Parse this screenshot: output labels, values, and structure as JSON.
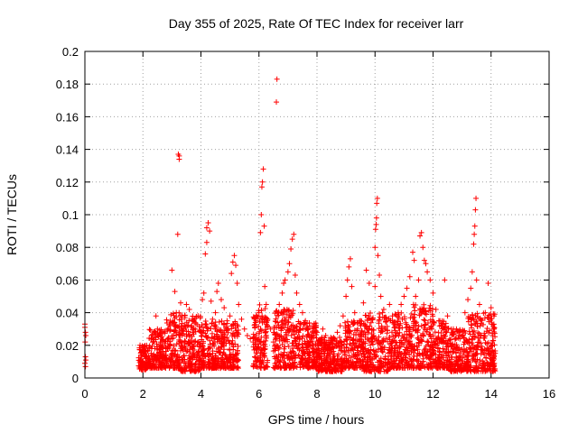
{
  "chart_data": {
    "type": "scatter",
    "title": "Day 355 of 2025, Rate Of TEC Index for receiver larr",
    "xlabel": "GPS time / hours",
    "ylabel": "ROTI / TECUs",
    "xlim": [
      0,
      16
    ],
    "ylim": [
      0,
      0.2
    ],
    "x_ticks": [
      0,
      2,
      4,
      6,
      8,
      10,
      12,
      14,
      16
    ],
    "y_ticks": [
      0,
      0.02,
      0.04,
      0.06,
      0.08,
      0.1,
      0.12,
      0.14,
      0.16,
      0.18,
      0.2
    ],
    "grid": true,
    "marker": "plus",
    "color": "#ff0000",
    "points": [
      [
        0.0,
        0.033
      ],
      [
        0.0,
        0.031
      ],
      [
        0.02,
        0.028
      ],
      [
        0.03,
        0.026
      ],
      [
        0.01,
        0.022
      ],
      [
        0.02,
        0.013
      ],
      [
        0.03,
        0.011
      ],
      [
        0.0,
        0.009
      ],
      [
        0.02,
        0.007
      ],
      [
        1.9,
        0.02
      ],
      [
        2.0,
        0.015
      ],
      [
        2.1,
        0.012
      ],
      [
        2.2,
        0.01
      ],
      [
        2.3,
        0.018
      ],
      [
        2.4,
        0.025
      ],
      [
        2.45,
        0.038
      ],
      [
        2.5,
        0.03
      ],
      [
        2.6,
        0.022
      ],
      [
        2.7,
        0.028
      ],
      [
        2.8,
        0.018
      ],
      [
        2.9,
        0.012
      ],
      [
        3.0,
        0.024
      ],
      [
        3.0,
        0.066
      ],
      [
        3.05,
        0.034
      ],
      [
        3.1,
        0.053
      ],
      [
        3.15,
        0.04
      ],
      [
        3.2,
        0.088
      ],
      [
        3.22,
        0.137
      ],
      [
        3.25,
        0.136
      ],
      [
        3.25,
        0.134
      ],
      [
        3.3,
        0.046
      ],
      [
        3.35,
        0.038
      ],
      [
        3.4,
        0.03
      ],
      [
        3.5,
        0.045
      ],
      [
        3.6,
        0.042
      ],
      [
        3.7,
        0.036
      ],
      [
        3.8,
        0.03
      ],
      [
        3.9,
        0.038
      ],
      [
        4.0,
        0.028
      ],
      [
        4.05,
        0.048
      ],
      [
        4.1,
        0.052
      ],
      [
        4.15,
        0.076
      ],
      [
        4.2,
        0.083
      ],
      [
        4.2,
        0.092
      ],
      [
        4.25,
        0.095
      ],
      [
        4.3,
        0.09
      ],
      [
        4.35,
        0.047
      ],
      [
        4.4,
        0.036
      ],
      [
        4.5,
        0.04
      ],
      [
        4.55,
        0.053
      ],
      [
        4.6,
        0.058
      ],
      [
        4.7,
        0.048
      ],
      [
        4.8,
        0.043
      ],
      [
        4.9,
        0.035
      ],
      [
        5.0,
        0.038
      ],
      [
        5.05,
        0.064
      ],
      [
        5.1,
        0.071
      ],
      [
        5.15,
        0.075
      ],
      [
        5.2,
        0.069
      ],
      [
        5.25,
        0.058
      ],
      [
        5.3,
        0.045
      ],
      [
        5.4,
        0.036
      ],
      [
        5.5,
        0.03
      ],
      [
        5.6,
        0.026
      ],
      [
        5.7,
        0.024
      ],
      [
        5.8,
        0.022
      ],
      [
        5.9,
        0.035
      ],
      [
        6.0,
        0.04
      ],
      [
        6.05,
        0.089
      ],
      [
        6.08,
        0.1
      ],
      [
        6.1,
        0.117
      ],
      [
        6.12,
        0.12
      ],
      [
        6.15,
        0.128
      ],
      [
        6.18,
        0.093
      ],
      [
        6.2,
        0.056
      ],
      [
        6.25,
        0.045
      ],
      [
        6.3,
        0.036
      ],
      [
        6.4,
        0.03
      ],
      [
        6.5,
        0.022
      ],
      [
        6.6,
        0.169
      ],
      [
        6.62,
        0.183
      ],
      [
        6.7,
        0.045
      ],
      [
        6.8,
        0.052
      ],
      [
        6.85,
        0.058
      ],
      [
        6.9,
        0.06
      ],
      [
        7.0,
        0.065
      ],
      [
        7.05,
        0.07
      ],
      [
        7.1,
        0.079
      ],
      [
        7.15,
        0.085
      ],
      [
        7.2,
        0.088
      ],
      [
        7.25,
        0.063
      ],
      [
        7.3,
        0.052
      ],
      [
        7.4,
        0.045
      ],
      [
        7.5,
        0.04
      ],
      [
        7.6,
        0.035
      ],
      [
        7.7,
        0.03
      ],
      [
        7.8,
        0.025
      ],
      [
        7.9,
        0.033
      ],
      [
        8.0,
        0.028
      ],
      [
        8.1,
        0.022
      ],
      [
        8.2,
        0.03
      ],
      [
        8.3,
        0.026
      ],
      [
        8.4,
        0.02
      ],
      [
        8.5,
        0.018
      ],
      [
        8.6,
        0.024
      ],
      [
        8.7,
        0.028
      ],
      [
        8.8,
        0.032
      ],
      [
        8.9,
        0.038
      ],
      [
        9.0,
        0.05
      ],
      [
        9.05,
        0.06
      ],
      [
        9.1,
        0.068
      ],
      [
        9.15,
        0.073
      ],
      [
        9.2,
        0.056
      ],
      [
        9.3,
        0.04
      ],
      [
        9.4,
        0.03
      ],
      [
        9.5,
        0.035
      ],
      [
        9.6,
        0.046
      ],
      [
        9.7,
        0.066
      ],
      [
        9.8,
        0.058
      ],
      [
        9.9,
        0.036
      ],
      [
        10.0,
        0.056
      ],
      [
        10.0,
        0.08
      ],
      [
        10.02,
        0.091
      ],
      [
        10.04,
        0.094
      ],
      [
        10.05,
        0.098
      ],
      [
        10.06,
        0.107
      ],
      [
        10.08,
        0.11
      ],
      [
        10.1,
        0.075
      ],
      [
        10.15,
        0.063
      ],
      [
        10.2,
        0.05
      ],
      [
        10.3,
        0.042
      ],
      [
        10.4,
        0.036
      ],
      [
        10.5,
        0.045
      ],
      [
        10.6,
        0.038
      ],
      [
        10.7,
        0.032
      ],
      [
        10.8,
        0.04
      ],
      [
        10.9,
        0.045
      ],
      [
        11.0,
        0.05
      ],
      [
        11.1,
        0.055
      ],
      [
        11.2,
        0.062
      ],
      [
        11.3,
        0.077
      ],
      [
        11.35,
        0.072
      ],
      [
        11.4,
        0.05
      ],
      [
        11.5,
        0.06
      ],
      [
        11.55,
        0.087
      ],
      [
        11.6,
        0.089
      ],
      [
        11.65,
        0.08
      ],
      [
        11.7,
        0.072
      ],
      [
        11.75,
        0.07
      ],
      [
        11.8,
        0.065
      ],
      [
        11.9,
        0.06
      ],
      [
        12.0,
        0.052
      ],
      [
        12.1,
        0.042
      ],
      [
        12.2,
        0.035
      ],
      [
        12.4,
        0.06
      ],
      [
        12.5,
        0.038
      ],
      [
        12.7,
        0.03
      ],
      [
        12.9,
        0.028
      ],
      [
        13.1,
        0.04
      ],
      [
        13.2,
        0.048
      ],
      [
        13.3,
        0.055
      ],
      [
        13.35,
        0.065
      ],
      [
        13.4,
        0.082
      ],
      [
        13.42,
        0.088
      ],
      [
        13.44,
        0.093
      ],
      [
        13.46,
        0.103
      ],
      [
        13.48,
        0.11
      ],
      [
        13.5,
        0.06
      ],
      [
        13.6,
        0.045
      ],
      [
        13.8,
        0.04
      ],
      [
        13.9,
        0.058
      ],
      [
        14.0,
        0.043
      ],
      [
        14.1,
        0.038
      ],
      [
        14.1,
        0.03
      ],
      [
        14.05,
        0.02
      ],
      [
        14.0,
        0.015
      ]
    ],
    "dense_band": [
      {
        "x0": 1.85,
        "x1": 2.2,
        "ymin": 0.005,
        "ymax": 0.02
      },
      {
        "x0": 2.2,
        "x1": 2.8,
        "ymin": 0.006,
        "ymax": 0.03
      },
      {
        "x0": 2.8,
        "x1": 3.3,
        "ymin": 0.006,
        "ymax": 0.04
      },
      {
        "x0": 3.3,
        "x1": 4.0,
        "ymin": 0.004,
        "ymax": 0.04
      },
      {
        "x0": 4.0,
        "x1": 4.6,
        "ymin": 0.006,
        "ymax": 0.035
      },
      {
        "x0": 4.6,
        "x1": 5.3,
        "ymin": 0.006,
        "ymax": 0.035
      },
      {
        "x0": 5.8,
        "x1": 6.3,
        "ymin": 0.006,
        "ymax": 0.045
      },
      {
        "x0": 6.5,
        "x1": 7.2,
        "ymin": 0.006,
        "ymax": 0.042
      },
      {
        "x0": 7.2,
        "x1": 8.0,
        "ymin": 0.006,
        "ymax": 0.035
      },
      {
        "x0": 8.0,
        "x1": 8.9,
        "ymin": 0.004,
        "ymax": 0.025
      },
      {
        "x0": 8.9,
        "x1": 9.6,
        "ymin": 0.006,
        "ymax": 0.035
      },
      {
        "x0": 9.6,
        "x1": 10.5,
        "ymin": 0.004,
        "ymax": 0.04
      },
      {
        "x0": 10.5,
        "x1": 11.3,
        "ymin": 0.006,
        "ymax": 0.04
      },
      {
        "x0": 11.3,
        "x1": 12.0,
        "ymin": 0.006,
        "ymax": 0.045
      },
      {
        "x0": 12.0,
        "x1": 12.6,
        "ymin": 0.006,
        "ymax": 0.035
      },
      {
        "x0": 12.6,
        "x1": 13.2,
        "ymin": 0.004,
        "ymax": 0.03
      },
      {
        "x0": 13.2,
        "x1": 14.15,
        "ymin": 0.004,
        "ymax": 0.04
      }
    ]
  }
}
